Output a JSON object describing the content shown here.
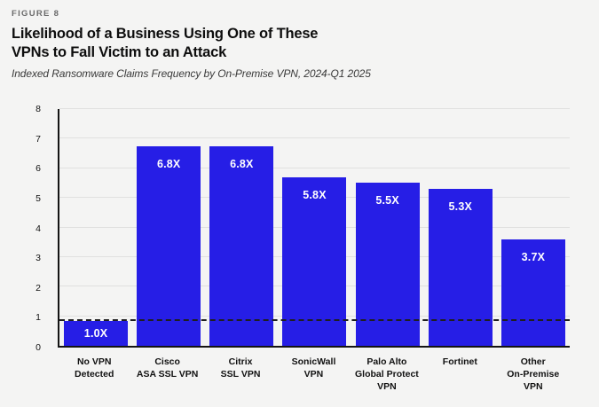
{
  "figure_label": "FIGURE 8",
  "title": "Likelihood of a Business Using One of These\nVPNs to Fall Victim to an Attack",
  "subtitle": "Indexed Ransomware Claims Frequency by On-Premise VPN, 2024-Q1 2025",
  "colors": {
    "background": "#f4f4f3",
    "bar": "#261ee6",
    "grid": "#e0e0df",
    "axis": "#141414",
    "reference_line": "#1f1f1f",
    "value_label": "#ffffff",
    "title_text": "#0e0e0e",
    "subtitle_text": "#3a3a3a",
    "figure_label_text": "#6b6b6b"
  },
  "chart_data": {
    "type": "bar",
    "title": "Likelihood of a Business Using One of These VPNs to Fall Victim to an Attack",
    "subtitle": "Indexed Ransomware Claims Frequency by On-Premise VPN, 2024-Q1 2025",
    "categories": [
      "No VPN\nDetected",
      "Cisco\nASA SSL VPN",
      "Citrix\nSSL VPN",
      "SonicWall\nVPN",
      "Palo Alto\nGlobal Protect\nVPN",
      "Fortinet",
      "Other\nOn-Premise\nVPN"
    ],
    "values": [
      1.0,
      6.8,
      6.8,
      5.8,
      5.5,
      5.3,
      3.7
    ],
    "bar_labels": [
      "1.0X",
      "6.8X",
      "6.8X",
      "5.8X",
      "5.5X",
      "5.3X",
      "3.7X"
    ],
    "plotted_heights": [
      0.85,
      6.75,
      6.75,
      5.7,
      5.5,
      5.3,
      3.6
    ],
    "xlabel": "",
    "ylabel": "",
    "ylim": [
      0,
      8
    ],
    "yticks": [
      0,
      1,
      2,
      3,
      4,
      5,
      6,
      7,
      8
    ],
    "grid": true,
    "legend": false,
    "reference_line": {
      "value": 0.85,
      "style": "dashed",
      "note": "dashed baseline aligned with top of No VPN Detected bar"
    }
  }
}
